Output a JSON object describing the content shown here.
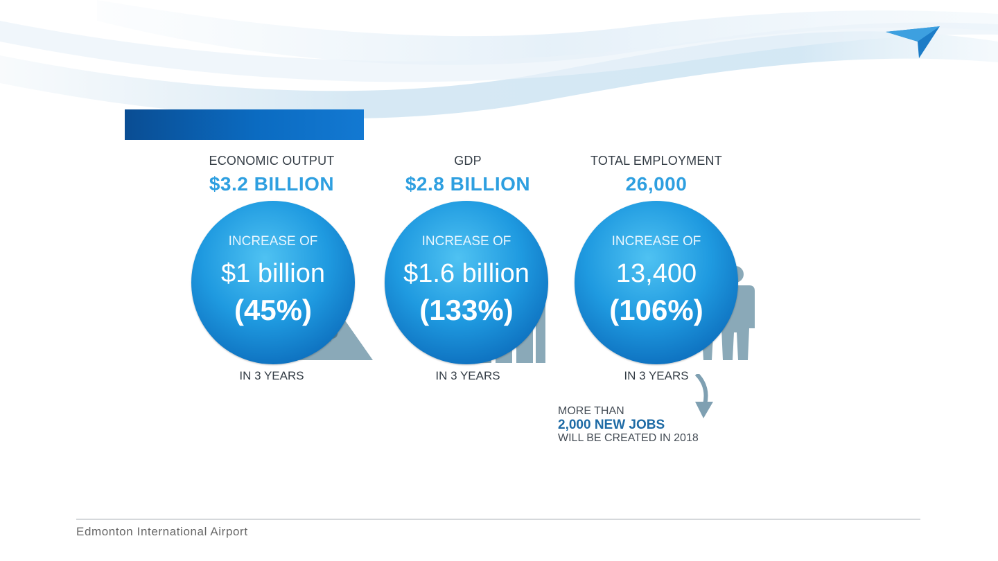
{
  "colors": {
    "accent": "#2e9fe0",
    "title_bar": "#0b6bc1",
    "callout_highlight": "#1d6aa5"
  },
  "header": {
    "logo": "airplane-arrow-logo",
    "title": ""
  },
  "stats": [
    {
      "label": "ECONOMIC OUTPUT",
      "headline": "$3.2 BILLION",
      "increase_label": "INCREASE OF",
      "increase_value": "$1 billion",
      "increase_pct": "(45%)",
      "period": "IN 3 YEARS",
      "icon": "money-bag-upward-arrow-icon"
    },
    {
      "label": "GDP",
      "headline": "$2.8 BILLION",
      "increase_label": "INCREASE OF",
      "increase_value": "$1.6 billion",
      "increase_pct": "(133%)",
      "period": "IN 3 YEARS",
      "icon": "bar-chart-rising-icon"
    },
    {
      "label": "TOTAL EMPLOYMENT",
      "headline": "26,000",
      "increase_label": "INCREASE OF",
      "increase_value": "13,400",
      "increase_pct": "(106%)",
      "period": "IN 3 YEARS",
      "icon": "people-icon"
    }
  ],
  "callout": {
    "line1": "MORE THAN",
    "line2": "2,000 NEW JOBS",
    "line3": "WILL BE CREATED IN 2018"
  },
  "footer": {
    "text": "Edmonton International Airport"
  }
}
